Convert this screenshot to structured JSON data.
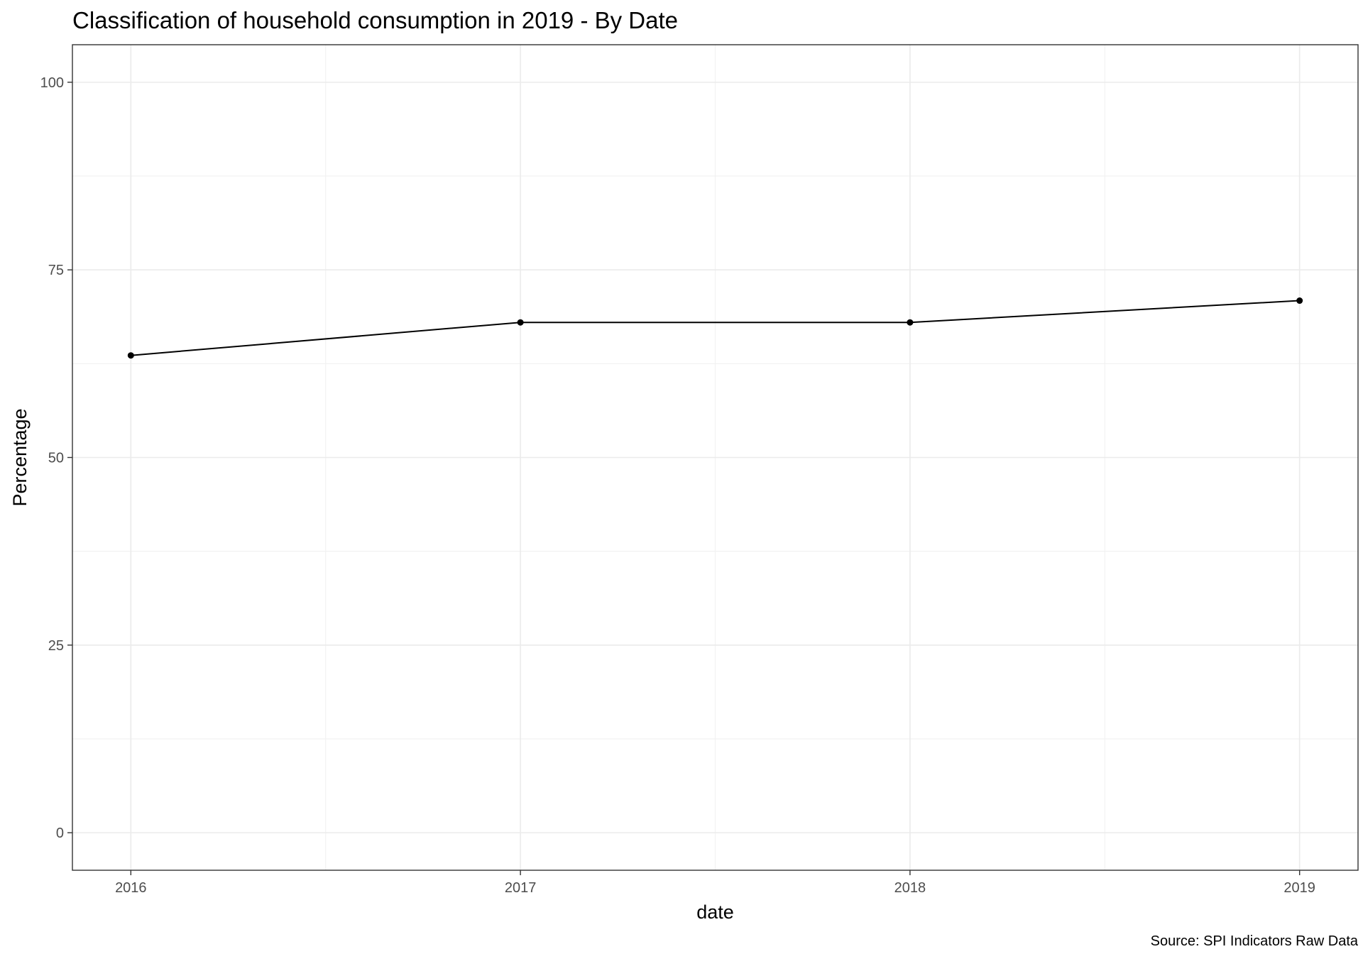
{
  "chart_data": {
    "type": "line",
    "title": "Classification of household consumption in 2019 - By Date",
    "xlabel": "date",
    "ylabel": "Percentage",
    "caption": "Source: SPI Indicators Raw Data",
    "x": [
      "2016",
      "2017",
      "2018",
      "2019"
    ],
    "x_numeric": [
      2016,
      2017,
      2018,
      2019
    ],
    "xlim": [
      2015.85,
      2019.15
    ],
    "ylim": [
      -5,
      105
    ],
    "y_ticks": [
      0,
      25,
      50,
      75,
      100
    ],
    "y_tick_labels": [
      "0",
      "25",
      "50",
      "75",
      "100"
    ],
    "x_ticks": [
      2016,
      2017,
      2018,
      2019
    ],
    "x_tick_labels": [
      "2016",
      "2017",
      "2018",
      "2019"
    ],
    "y_minor_ticks": [
      12.5,
      37.5,
      62.5,
      87.5
    ],
    "x_minor_ticks": [
      2016.5,
      2017.5,
      2018.5
    ],
    "grid": true,
    "legend": "none",
    "series": [
      {
        "values": [
          63.6,
          68.0,
          68.0,
          70.9
        ],
        "color": "#000000"
      }
    ]
  }
}
